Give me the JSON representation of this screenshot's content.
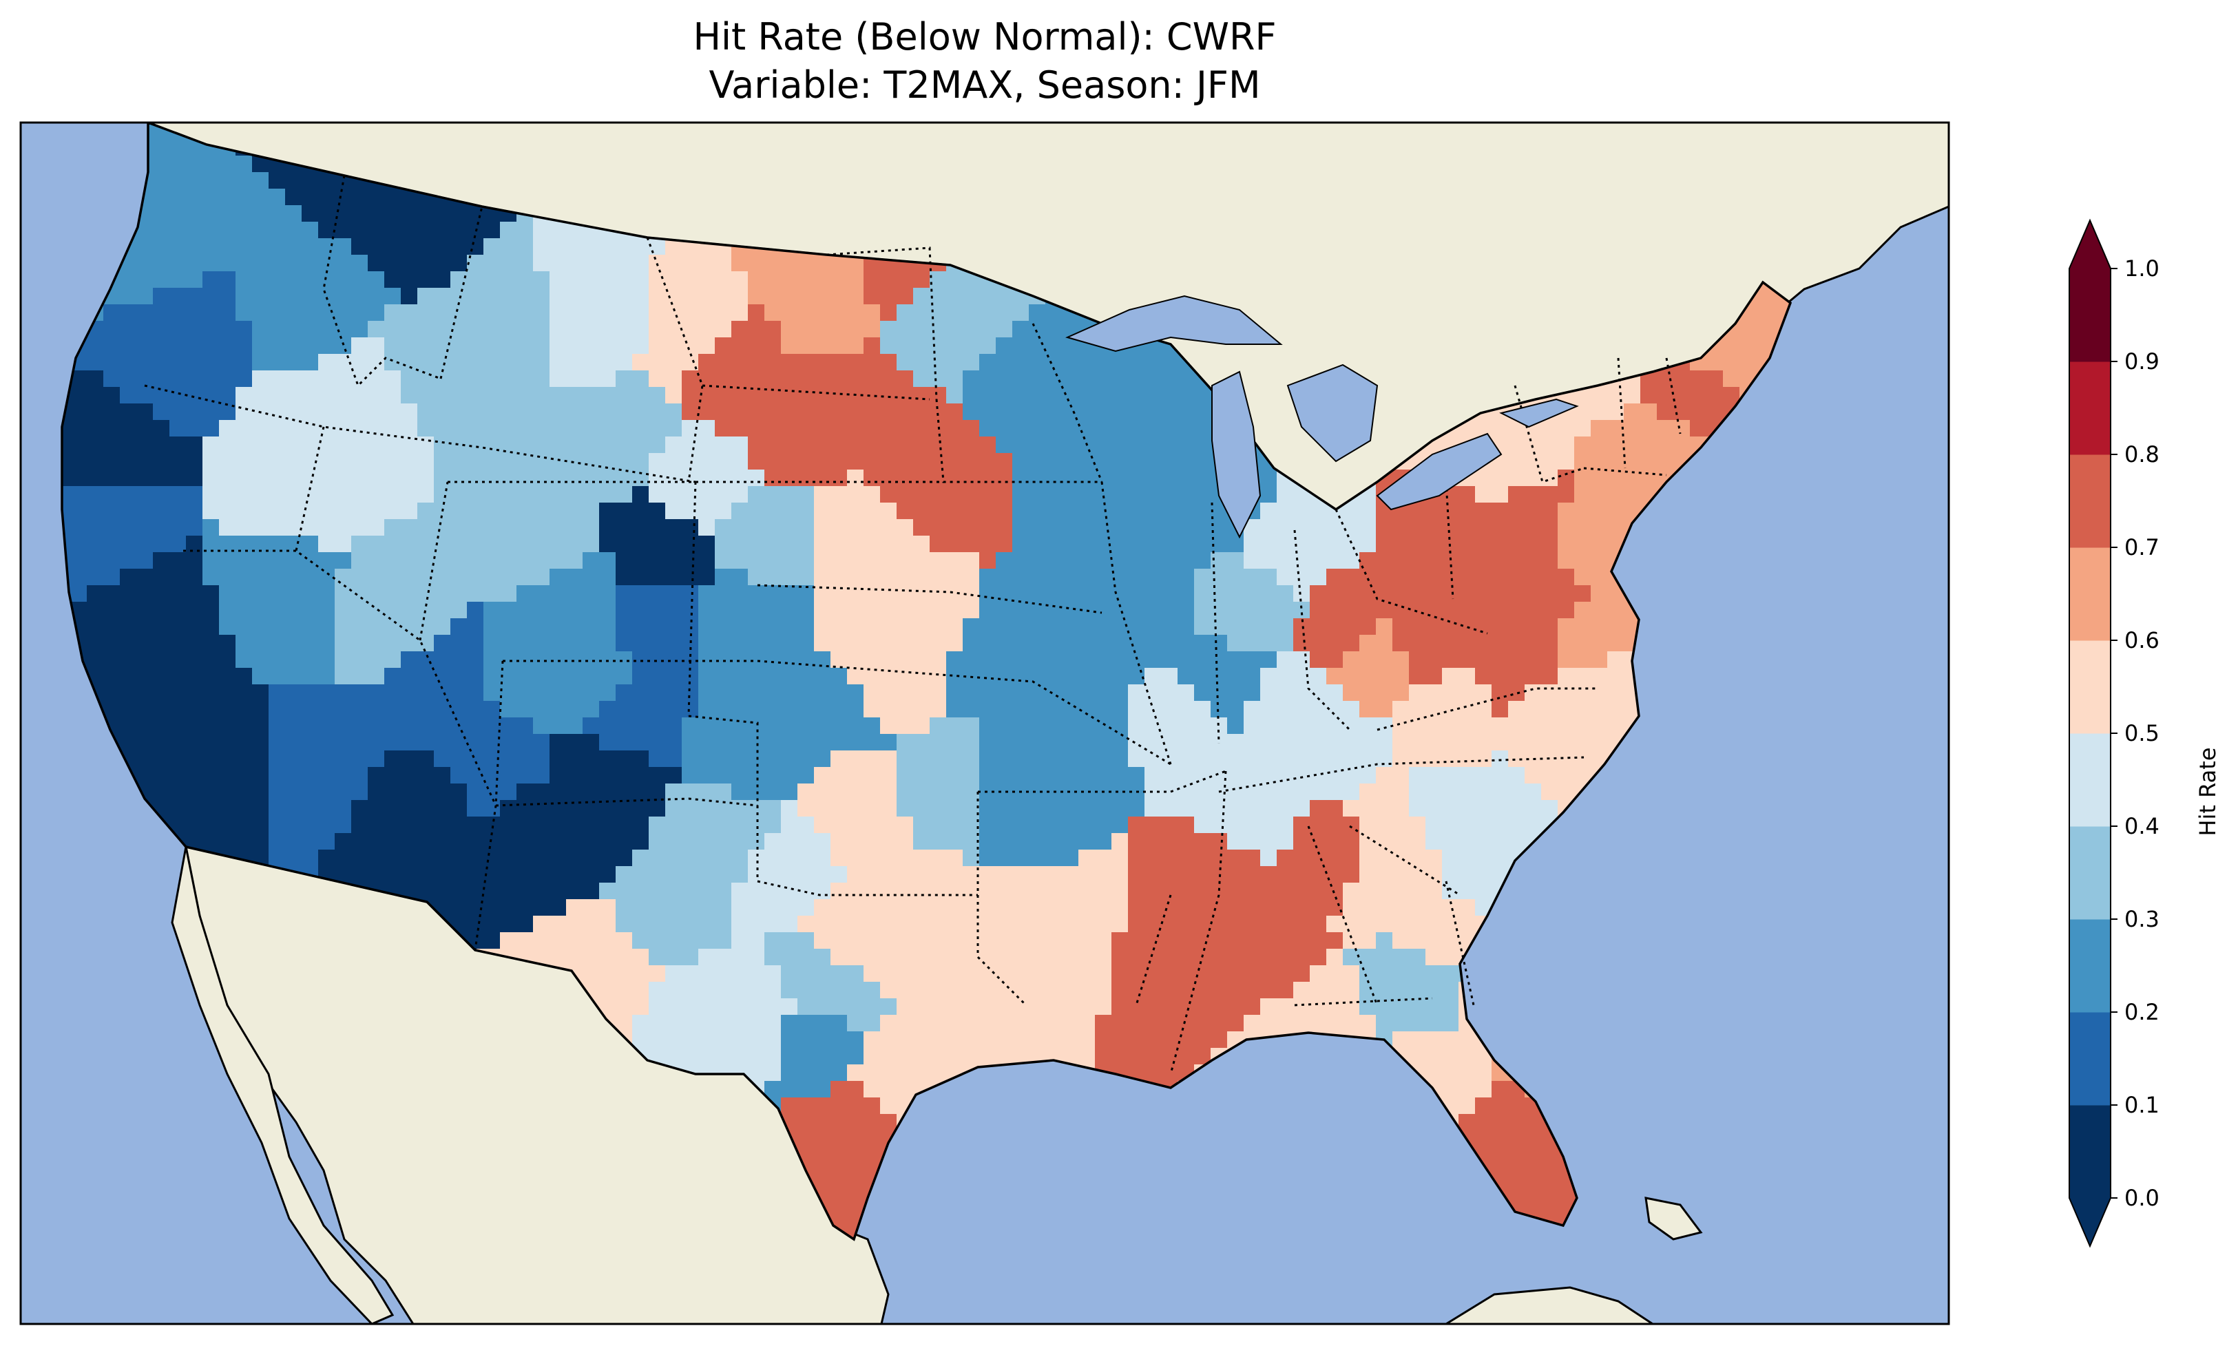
{
  "title": {
    "line1": "Hit Rate (Below Normal): CWRF",
    "line2": "Variable: T2MAX, Season: JFM"
  },
  "colorbar": {
    "label": "Hit Rate",
    "ticks": [
      "0.0",
      "0.1",
      "0.2",
      "0.3",
      "0.4",
      "0.5",
      "0.6",
      "0.7",
      "0.8",
      "0.9",
      "1.0"
    ],
    "colors": [
      "#053061",
      "#2166ac",
      "#4393c3",
      "#92c5de",
      "#d1e5f0",
      "#fddbc7",
      "#f4a582",
      "#d6604d",
      "#b2182b",
      "#67001f"
    ],
    "extend": "both",
    "under_color": "#053061",
    "over_color": "#67001f"
  },
  "map": {
    "ocean_color": "#96b4e0",
    "land_color": "#efeddb",
    "region": "Contiguous United States"
  }
}
